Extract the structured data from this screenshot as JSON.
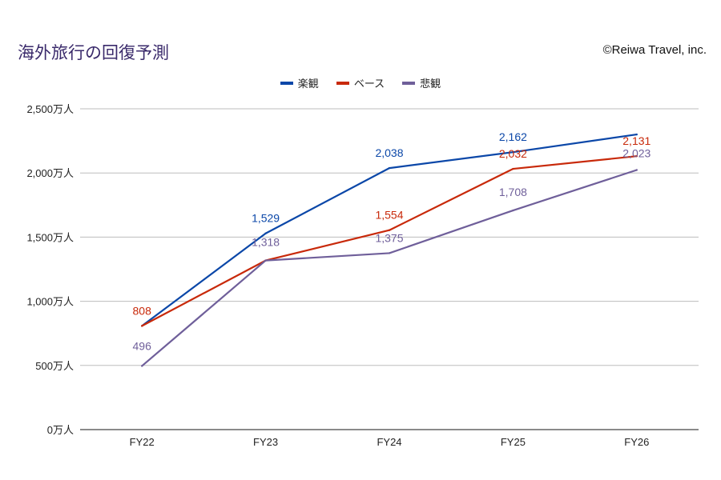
{
  "title": "海外旅行の回復予測",
  "credit": "©Reiwa Travel, inc.",
  "chart_data": {
    "type": "line",
    "title": "海外旅行の回復予測",
    "categories": [
      "FY22",
      "FY23",
      "FY24",
      "FY25",
      "FY26"
    ],
    "y_ticks": [
      "0万人",
      "500万人",
      "1,000万人",
      "1,500万人",
      "2,000万人",
      "2,500万人"
    ],
    "ylim": [
      0,
      2500
    ],
    "grid": true,
    "legend_position": "top",
    "series": [
      {
        "name": "楽観",
        "color": "#0b47a8",
        "values": [
          808,
          1529,
          2038,
          2162,
          2300
        ],
        "labels": [
          "",
          "1,529",
          "2,038",
          "2,162",
          ""
        ]
      },
      {
        "name": "ベース",
        "color": "#c8290a",
        "values": [
          808,
          1318,
          1554,
          2032,
          2131
        ],
        "labels": [
          "808",
          "",
          "1,554",
          "2,032",
          "2,131"
        ]
      },
      {
        "name": "悲観",
        "color": "#6f5f9a",
        "values": [
          496,
          1318,
          1375,
          1708,
          2023
        ],
        "labels": [
          "496",
          "1,318",
          "1,375",
          "1,708",
          "2,023"
        ]
      }
    ]
  }
}
